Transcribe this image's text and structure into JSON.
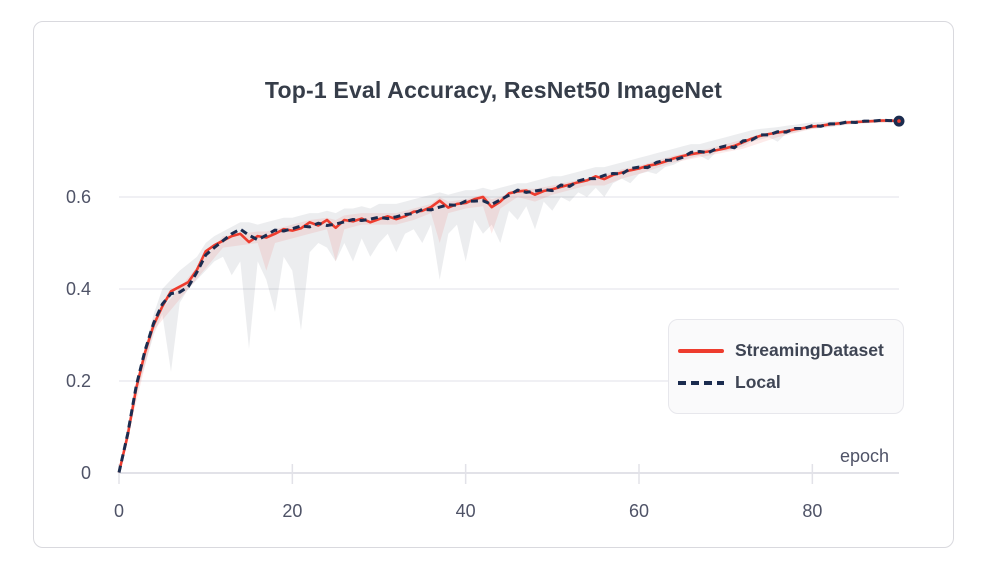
{
  "card": {
    "title": "Top-1 Eval Accuracy, ResNet50 ImageNet"
  },
  "axes": {
    "x_axis_label": "epoch",
    "x_tick_labels": [
      "0",
      "20",
      "40",
      "60",
      "80"
    ],
    "y_tick_labels": [
      "0",
      "0.2",
      "0.4",
      "0.6"
    ]
  },
  "legend": {
    "items": [
      {
        "label": "StreamingDataset",
        "swatch_icon": "solid-red-line",
        "color": "#ee3c2e"
      },
      {
        "label": "Local",
        "swatch_icon": "dashed-navy-line",
        "color": "#1b2c4f"
      }
    ]
  },
  "colors": {
    "streaming_red": "#ee3c2e",
    "local_navy": "#1b2c4f",
    "gridline": "#ebebf0",
    "axis_line": "#e2e2e8",
    "tick_text": "#4f5367",
    "title_text": "#363d49",
    "card_border": "#d9d9de",
    "band_gray": "#444a66",
    "band_red": "#ee3c2e"
  },
  "chart_data": {
    "type": "line",
    "title": "Top-1 Eval Accuracy, ResNet50 ImageNet",
    "xlabel": "epoch",
    "ylabel": "",
    "xlim": [
      0,
      90
    ],
    "ylim": [
      0,
      0.787
    ],
    "x_ticks": [
      0,
      20,
      40,
      60,
      80
    ],
    "y_ticks": [
      0,
      0.2,
      0.4,
      0.6
    ],
    "grid": "horizontal-only",
    "legend_position": "inside lower-right",
    "x_start": 0,
    "x_step": 1,
    "end_marker": {
      "epoch": 90,
      "value": 0.765,
      "style": "navy dot with red center"
    },
    "series": [
      {
        "name": "StreamingDataset",
        "color": "#ee3c2e",
        "style": "solid",
        "values": [
          0.001,
          0.082,
          0.185,
          0.262,
          0.322,
          0.362,
          0.395,
          0.405,
          0.415,
          0.442,
          0.482,
          0.495,
          0.505,
          0.515,
          0.52,
          0.502,
          0.515,
          0.512,
          0.52,
          0.53,
          0.527,
          0.532,
          0.545,
          0.538,
          0.55,
          0.533,
          0.55,
          0.547,
          0.553,
          0.545,
          0.552,
          0.558,
          0.552,
          0.558,
          0.568,
          0.57,
          0.578,
          0.592,
          0.577,
          0.585,
          0.587,
          0.595,
          0.6,
          0.578,
          0.59,
          0.608,
          0.612,
          0.614,
          0.605,
          0.613,
          0.617,
          0.622,
          0.627,
          0.632,
          0.636,
          0.645,
          0.639,
          0.648,
          0.653,
          0.658,
          0.662,
          0.668,
          0.671,
          0.677,
          0.684,
          0.689,
          0.693,
          0.696,
          0.699,
          0.702,
          0.706,
          0.711,
          0.719,
          0.727,
          0.733,
          0.737,
          0.74,
          0.743,
          0.747,
          0.75,
          0.753,
          0.755,
          0.758,
          0.76,
          0.762,
          0.763,
          0.764,
          0.765,
          0.766,
          0.766,
          0.765
        ]
      },
      {
        "name": "Local",
        "color": "#1b2c4f",
        "style": "dashed",
        "values": [
          0.001,
          0.085,
          0.19,
          0.266,
          0.326,
          0.367,
          0.39,
          0.393,
          0.405,
          0.437,
          0.474,
          0.49,
          0.505,
          0.52,
          0.53,
          0.517,
          0.507,
          0.517,
          0.528,
          0.526,
          0.531,
          0.537,
          0.535,
          0.543,
          0.538,
          0.541,
          0.546,
          0.551,
          0.549,
          0.552,
          0.556,
          0.553,
          0.557,
          0.562,
          0.564,
          0.573,
          0.572,
          0.578,
          0.583,
          0.582,
          0.591,
          0.591,
          0.592,
          0.584,
          0.594,
          0.604,
          0.615,
          0.61,
          0.613,
          0.616,
          0.614,
          0.626,
          0.623,
          0.635,
          0.64,
          0.64,
          0.647,
          0.651,
          0.65,
          0.662,
          0.665,
          0.664,
          0.675,
          0.68,
          0.68,
          0.686,
          0.697,
          0.699,
          0.696,
          0.706,
          0.711,
          0.707,
          0.722,
          0.724,
          0.735,
          0.735,
          0.742,
          0.741,
          0.749,
          0.749,
          0.755,
          0.754,
          0.759,
          0.759,
          0.763,
          0.762,
          0.765,
          0.765,
          0.767,
          0.766,
          0.766
        ]
      }
    ],
    "bands": [
      {
        "series": "Local",
        "color": "#444a66",
        "opacity": 0.1,
        "x": [
          0,
          2,
          4,
          5,
          6,
          7,
          8,
          9,
          10,
          11,
          12,
          13,
          14,
          15,
          16,
          17,
          18,
          19,
          20,
          21,
          22,
          23,
          24,
          25,
          26,
          27,
          28,
          29,
          30,
          31,
          32,
          33,
          34,
          35,
          36,
          37,
          38,
          39,
          40,
          41,
          42,
          43,
          44,
          45,
          46,
          47,
          48,
          49,
          50,
          51,
          52,
          53,
          54,
          55,
          56,
          57,
          58,
          59,
          60,
          61,
          62,
          63,
          64,
          65,
          66,
          67,
          68,
          69,
          70,
          71,
          72,
          73,
          74,
          75,
          76,
          77,
          78,
          79,
          80,
          82,
          84,
          86,
          88,
          90
        ],
        "lower": [
          0,
          0.17,
          0.3,
          0.345,
          0.22,
          0.37,
          0.4,
          0.42,
          0.44,
          0.46,
          0.47,
          0.43,
          0.46,
          0.27,
          0.46,
          0.42,
          0.35,
          0.47,
          0.44,
          0.31,
          0.48,
          0.5,
          0.49,
          0.46,
          0.5,
          0.46,
          0.51,
          0.47,
          0.5,
          0.52,
          0.48,
          0.52,
          0.53,
          0.5,
          0.54,
          0.42,
          0.52,
          0.54,
          0.46,
          0.55,
          0.52,
          0.54,
          0.5,
          0.57,
          0.55,
          0.58,
          0.53,
          0.59,
          0.57,
          0.6,
          0.59,
          0.61,
          0.6,
          0.62,
          0.6,
          0.63,
          0.64,
          0.63,
          0.65,
          0.655,
          0.65,
          0.665,
          0.67,
          0.68,
          0.685,
          0.69,
          0.68,
          0.7,
          0.7,
          0.705,
          0.71,
          0.72,
          0.725,
          0.73,
          0.72,
          0.738,
          0.74,
          0.745,
          0.748,
          0.752,
          0.757,
          0.76,
          0.762,
          0.763
        ],
        "upper": [
          0.004,
          0.2,
          0.345,
          0.4,
          0.42,
          0.44,
          0.455,
          0.47,
          0.5,
          0.515,
          0.525,
          0.535,
          0.545,
          0.545,
          0.54,
          0.545,
          0.55,
          0.555,
          0.555,
          0.56,
          0.565,
          0.565,
          0.57,
          0.565,
          0.575,
          0.575,
          0.58,
          0.575,
          0.585,
          0.585,
          0.585,
          0.59,
          0.595,
          0.6,
          0.605,
          0.61,
          0.605,
          0.61,
          0.615,
          0.615,
          0.62,
          0.615,
          0.62,
          0.625,
          0.63,
          0.63,
          0.635,
          0.64,
          0.645,
          0.645,
          0.65,
          0.655,
          0.66,
          0.665,
          0.665,
          0.67,
          0.675,
          0.68,
          0.685,
          0.69,
          0.695,
          0.7,
          0.705,
          0.71,
          0.715,
          0.715,
          0.72,
          0.725,
          0.73,
          0.735,
          0.74,
          0.745,
          0.748,
          0.75,
          0.752,
          0.755,
          0.757,
          0.76,
          0.762,
          0.764,
          0.767,
          0.768,
          0.769,
          0.768
        ]
      },
      {
        "series": "StreamingDataset",
        "color": "#ee3c2e",
        "opacity": 0.1,
        "x": [
          0,
          4,
          8,
          12,
          16,
          17,
          18,
          20,
          22,
          24,
          25,
          26,
          28,
          30,
          32,
          34,
          36,
          37,
          38,
          40,
          42,
          43,
          44,
          46,
          48,
          50,
          52,
          54,
          56,
          58,
          60,
          64,
          68,
          72,
          76,
          80,
          85,
          90
        ],
        "lower": [
          0,
          0.31,
          0.4,
          0.49,
          0.5,
          0.44,
          0.5,
          0.51,
          0.52,
          0.53,
          0.46,
          0.53,
          0.54,
          0.54,
          0.54,
          0.55,
          0.565,
          0.5,
          0.565,
          0.575,
          0.58,
          0.52,
          0.575,
          0.6,
          0.59,
          0.605,
          0.615,
          0.625,
          0.625,
          0.64,
          0.65,
          0.675,
          0.69,
          0.705,
          0.73,
          0.748,
          0.76,
          0.762
        ],
        "upper": [
          0.002,
          0.335,
          0.425,
          0.515,
          0.525,
          0.525,
          0.53,
          0.54,
          0.55,
          0.555,
          0.55,
          0.56,
          0.565,
          0.565,
          0.565,
          0.575,
          0.585,
          0.6,
          0.59,
          0.595,
          0.605,
          0.595,
          0.6,
          0.618,
          0.618,
          0.625,
          0.633,
          0.64,
          0.648,
          0.66,
          0.668,
          0.69,
          0.705,
          0.725,
          0.742,
          0.756,
          0.766,
          0.768
        ]
      }
    ]
  }
}
